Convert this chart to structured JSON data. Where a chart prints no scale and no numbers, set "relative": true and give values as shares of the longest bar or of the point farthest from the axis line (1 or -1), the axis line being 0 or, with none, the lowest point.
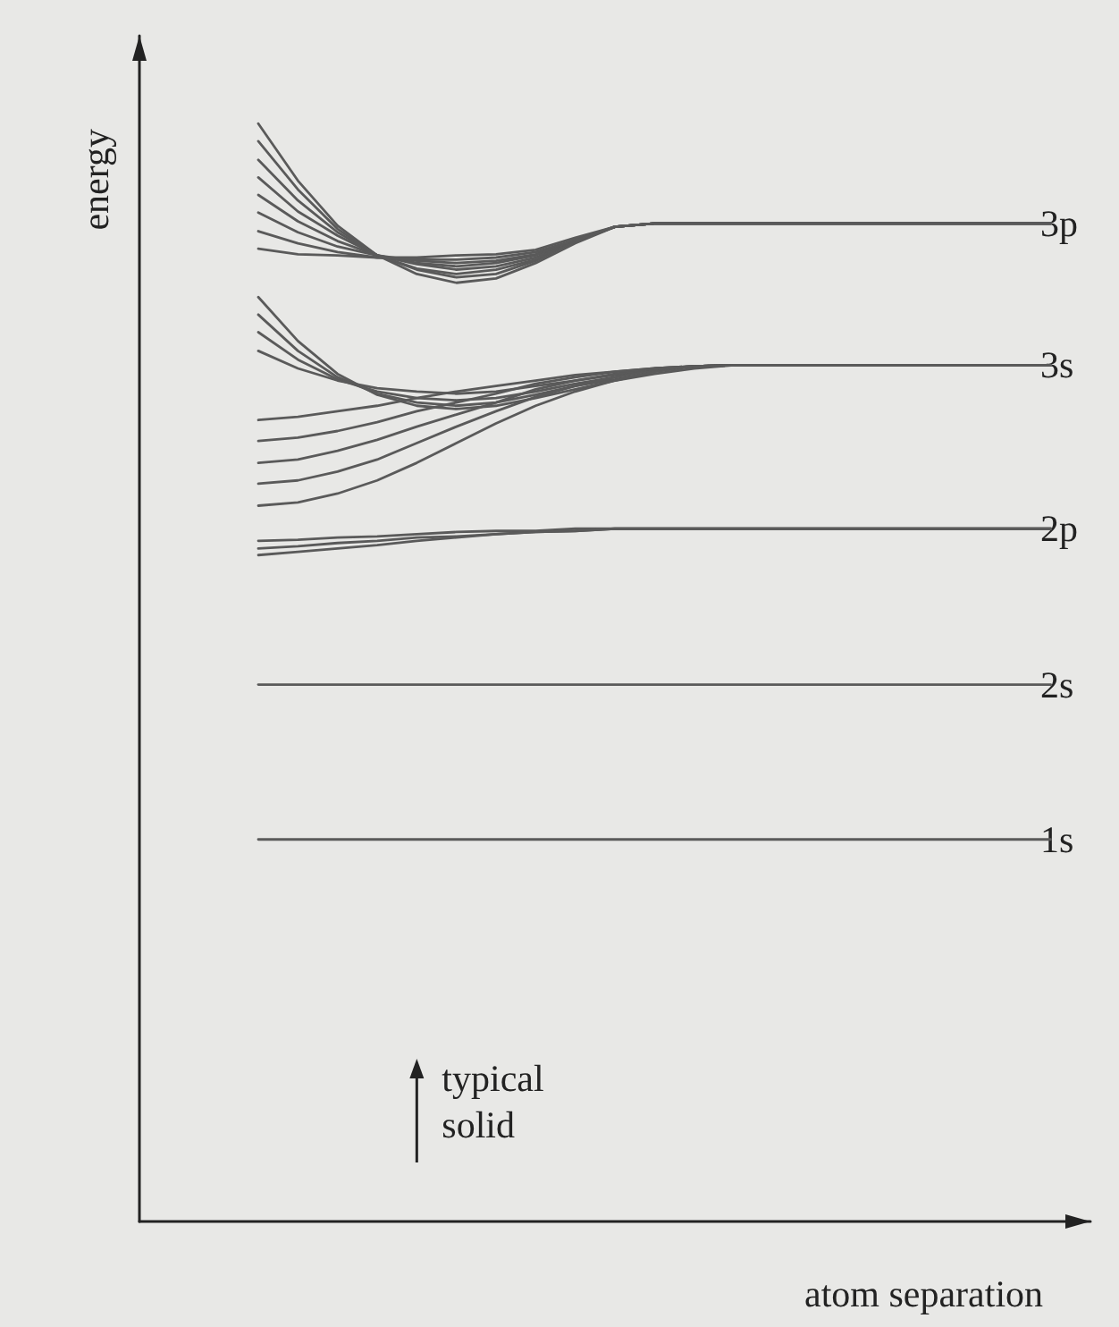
{
  "chart_data": {
    "type": "line",
    "relative": true,
    "xlabel": "atom separation",
    "ylabel": "energy",
    "grid": false,
    "marker": "none",
    "line_style": "solid",
    "categories": [
      null,
      null,
      null,
      null,
      null,
      null,
      null,
      null,
      null,
      null,
      null,
      null,
      null,
      null,
      null,
      null,
      null,
      null,
      null,
      null,
      null,
      null,
      null,
      null,
      null
    ],
    "series": [
      {
        "color": "#5a5a5a",
        "values": [
          null,
          null,
          null,
          1.0,
          0.948,
          0.907,
          0.88,
          0.863,
          0.855,
          0.859,
          0.873,
          0.891,
          0.906,
          0.909,
          0.909,
          0.909,
          0.909,
          0.909,
          0.909,
          0.909,
          0.909,
          0.909,
          0.909,
          0.909,
          null
        ]
      },
      {
        "color": "#5a5a5a",
        "values": [
          null,
          null,
          null,
          0.984,
          0.94,
          0.904,
          0.88,
          0.867,
          0.86,
          0.863,
          0.875,
          0.893,
          0.906,
          0.909,
          0.909,
          0.909,
          0.909,
          0.909,
          0.909,
          0.909,
          0.909,
          0.909,
          0.909,
          0.909,
          null
        ]
      },
      {
        "color": "#5a5a5a",
        "values": [
          null,
          null,
          null,
          0.967,
          0.93,
          0.901,
          0.88,
          0.868,
          0.863,
          0.867,
          0.876,
          0.893,
          0.906,
          0.909,
          0.909,
          0.909,
          0.909,
          0.909,
          0.909,
          0.909,
          0.909,
          0.909,
          0.909,
          0.909,
          null
        ]
      },
      {
        "color": "#5a5a5a",
        "values": [
          null,
          null,
          null,
          0.951,
          0.92,
          0.898,
          0.88,
          0.872,
          0.867,
          0.87,
          0.878,
          0.893,
          0.906,
          0.909,
          0.909,
          0.909,
          0.909,
          0.909,
          0.909,
          0.909,
          0.909,
          0.909,
          0.909,
          0.909,
          null
        ]
      },
      {
        "color": "#5a5a5a",
        "values": [
          null,
          null,
          null,
          0.935,
          0.911,
          0.893,
          0.88,
          0.873,
          0.87,
          0.873,
          0.88,
          0.894,
          0.906,
          0.909,
          0.909,
          0.909,
          0.909,
          0.909,
          0.909,
          0.909,
          0.909,
          0.909,
          0.909,
          0.909,
          null
        ]
      },
      {
        "color": "#5a5a5a",
        "values": [
          null,
          null,
          null,
          0.919,
          0.901,
          0.888,
          0.88,
          0.875,
          0.873,
          0.875,
          0.881,
          0.894,
          0.906,
          0.909,
          0.909,
          0.909,
          0.909,
          0.909,
          0.909,
          0.909,
          0.909,
          0.909,
          0.909,
          0.909,
          null
        ]
      },
      {
        "color": "#5a5a5a",
        "values": [
          null,
          null,
          null,
          0.902,
          0.891,
          0.883,
          0.878,
          0.876,
          0.876,
          0.878,
          0.883,
          0.894,
          0.906,
          0.909,
          0.909,
          0.909,
          0.909,
          0.909,
          0.909,
          0.909,
          0.909,
          0.909,
          0.909,
          0.909,
          null
        ]
      },
      {
        "color": "#5a5a5a",
        "values": [
          null,
          null,
          null,
          0.886,
          0.881,
          0.88,
          0.878,
          0.878,
          0.88,
          0.881,
          0.885,
          0.896,
          0.906,
          0.909,
          0.909,
          0.909,
          0.909,
          0.909,
          0.909,
          0.909,
          0.909,
          0.909,
          0.909,
          0.909,
          null
        ]
      },
      {
        "color": "#5a5a5a",
        "values": [
          null,
          null,
          null,
          0.842,
          0.802,
          0.772,
          0.753,
          0.743,
          0.74,
          0.743,
          0.75,
          0.758,
          0.766,
          0.772,
          0.777,
          0.78,
          0.78,
          0.78,
          0.78,
          0.78,
          0.78,
          0.78,
          0.78,
          0.78,
          null
        ]
      },
      {
        "color": "#5a5a5a",
        "values": [
          null,
          null,
          null,
          0.826,
          0.793,
          0.769,
          0.754,
          0.746,
          0.743,
          0.746,
          0.753,
          0.761,
          0.767,
          0.774,
          0.779,
          0.78,
          0.78,
          0.78,
          0.78,
          0.78,
          0.78,
          0.78,
          0.78,
          0.78,
          null
        ]
      },
      {
        "color": "#5a5a5a",
        "values": [
          null,
          null,
          null,
          0.81,
          0.785,
          0.767,
          0.756,
          0.75,
          0.748,
          0.75,
          0.756,
          0.763,
          0.769,
          0.776,
          0.779,
          0.78,
          0.78,
          0.78,
          0.78,
          0.78,
          0.78,
          0.78,
          0.78,
          0.78,
          null
        ]
      },
      {
        "color": "#5a5a5a",
        "values": [
          null,
          null,
          null,
          0.793,
          0.777,
          0.766,
          0.759,
          0.756,
          0.754,
          0.756,
          0.761,
          0.766,
          0.771,
          0.776,
          0.779,
          0.78,
          0.78,
          0.78,
          0.78,
          0.78,
          0.78,
          0.78,
          0.78,
          0.78,
          null
        ]
      },
      {
        "color": "#5a5a5a",
        "values": [
          null,
          null,
          null,
          0.652,
          0.655,
          0.663,
          0.675,
          0.691,
          0.709,
          0.727,
          0.743,
          0.756,
          0.766,
          0.774,
          0.779,
          0.78,
          0.78,
          0.78,
          0.78,
          0.78,
          0.78,
          0.78,
          0.78,
          0.78,
          null
        ]
      },
      {
        "color": "#5a5a5a",
        "values": [
          null,
          null,
          null,
          0.672,
          0.675,
          0.683,
          0.694,
          0.709,
          0.724,
          0.738,
          0.751,
          0.761,
          0.769,
          0.776,
          0.779,
          0.78,
          0.78,
          0.78,
          0.78,
          0.78,
          0.78,
          0.78,
          0.78,
          0.78,
          null
        ]
      },
      {
        "color": "#5a5a5a",
        "values": [
          null,
          null,
          null,
          0.691,
          0.694,
          0.702,
          0.712,
          0.724,
          0.735,
          0.746,
          0.758,
          0.766,
          0.772,
          0.777,
          0.779,
          0.78,
          0.78,
          0.78,
          0.78,
          0.78,
          0.78,
          0.78,
          0.78,
          0.78,
          null
        ]
      },
      {
        "color": "#5a5a5a",
        "values": [
          null,
          null,
          null,
          0.711,
          0.714,
          0.72,
          0.728,
          0.738,
          0.746,
          0.754,
          0.763,
          0.769,
          0.774,
          0.777,
          0.779,
          0.78,
          0.78,
          0.78,
          0.78,
          0.78,
          0.78,
          0.78,
          0.78,
          0.78,
          null
        ]
      },
      {
        "color": "#5a5a5a",
        "values": [
          null,
          null,
          null,
          0.73,
          0.733,
          0.738,
          0.743,
          0.75,
          0.756,
          0.761,
          0.766,
          0.771,
          0.774,
          0.777,
          0.779,
          0.78,
          0.78,
          0.78,
          0.78,
          0.78,
          0.78,
          0.78,
          0.78,
          0.78,
          null
        ]
      },
      {
        "color": "#5a5a5a",
        "values": [
          null,
          null,
          null,
          0.62,
          0.621,
          0.623,
          0.624,
          0.626,
          0.628,
          0.629,
          0.629,
          0.631,
          0.631,
          0.631,
          0.631,
          0.631,
          0.631,
          0.631,
          0.631,
          0.631,
          0.631,
          0.631,
          0.631,
          0.631,
          null
        ]
      },
      {
        "color": "#5a5a5a",
        "values": [
          null,
          null,
          null,
          0.613,
          0.615,
          0.618,
          0.62,
          0.623,
          0.624,
          0.626,
          0.628,
          0.629,
          0.631,
          0.631,
          0.631,
          0.631,
          0.631,
          0.631,
          0.631,
          0.631,
          0.631,
          0.631,
          0.631,
          0.631,
          null
        ]
      },
      {
        "color": "#5a5a5a",
        "values": [
          null,
          null,
          null,
          0.607,
          0.61,
          0.613,
          0.616,
          0.62,
          0.623,
          0.626,
          0.628,
          0.629,
          0.631,
          0.631,
          0.631,
          0.631,
          0.631,
          0.631,
          0.631,
          0.631,
          0.631,
          0.631,
          0.631,
          0.631,
          null
        ]
      },
      {
        "color": "#5a5a5a",
        "values": [
          null,
          null,
          null,
          0.489,
          0.489,
          0.489,
          0.489,
          0.489,
          0.489,
          0.489,
          0.489,
          0.489,
          0.489,
          0.489,
          0.489,
          0.489,
          0.489,
          0.489,
          0.489,
          0.489,
          0.489,
          0.489,
          0.489,
          0.489,
          null
        ]
      },
      {
        "color": "#5a5a5a",
        "values": [
          null,
          null,
          null,
          0.348,
          0.348,
          0.348,
          0.348,
          0.348,
          0.348,
          0.348,
          0.348,
          0.348,
          0.348,
          0.348,
          0.348,
          0.348,
          0.348,
          0.348,
          0.348,
          0.348,
          0.348,
          0.348,
          0.348,
          0.348,
          null
        ]
      }
    ],
    "annotations": [
      {
        "text": "3p",
        "y": 0.909
      },
      {
        "text": "3s",
        "y": 0.78
      },
      {
        "text": "2p",
        "y": 0.631
      },
      {
        "text": "2s",
        "y": 0.489
      },
      {
        "text": "1s",
        "y": 0.348
      },
      "typical solid"
    ]
  }
}
